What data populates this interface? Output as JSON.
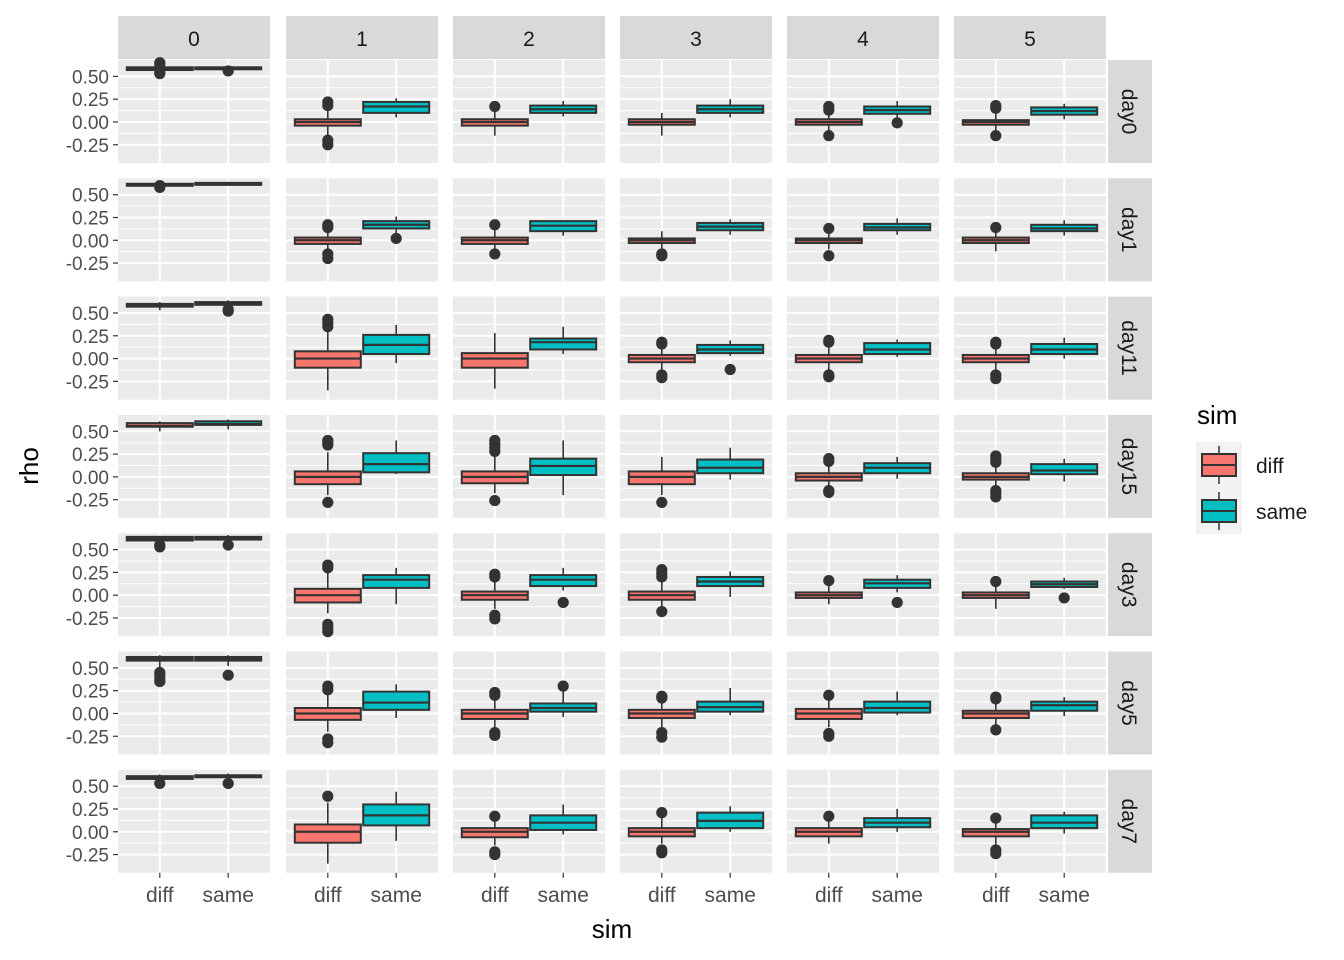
{
  "chart_data": {
    "type": "boxplot",
    "facet_columns": [
      "0",
      "1",
      "2",
      "3",
      "4",
      "5"
    ],
    "facet_rows": [
      "day0",
      "day1",
      "day11",
      "day15",
      "day3",
      "day5",
      "day7"
    ],
    "categories": [
      "diff",
      "same"
    ],
    "xlabel": "sim",
    "ylabel": "rho",
    "y_ticks": [
      -0.25,
      0.0,
      0.25,
      0.5
    ],
    "y_tick_labels": [
      "-0.25",
      "0.00",
      "0.25",
      "0.50"
    ],
    "ylim": [
      -0.45,
      0.68
    ],
    "legend": {
      "title": "sim",
      "position": "right",
      "entries": [
        {
          "label": "diff",
          "color": "#F8766D"
        },
        {
          "label": "same",
          "color": "#00BFC4"
        }
      ]
    },
    "colors": {
      "diff": "#F8766D",
      "same": "#00BFC4",
      "panel": "#EBEBEB",
      "strip": "#D9D9D9",
      "box_line": "#333333"
    },
    "boxes": {
      "day0": [
        {
          "diff": {
            "lo": 0.52,
            "q1": 0.57,
            "med": 0.58,
            "q3": 0.6,
            "hi": 0.63,
            "out": [
              0.53,
              0.55,
              0.63,
              0.65
            ]
          },
          "same": {
            "lo": 0.56,
            "q1": 0.58,
            "med": 0.59,
            "q3": 0.6,
            "hi": 0.61,
            "out": [
              0.56
            ]
          }
        },
        {
          "diff": {
            "lo": -0.15,
            "q1": -0.04,
            "med": 0.0,
            "q3": 0.03,
            "hi": 0.15,
            "out": [
              0.18,
              0.22,
              -0.2,
              -0.25
            ]
          },
          "same": {
            "lo": 0.05,
            "q1": 0.1,
            "med": 0.17,
            "q3": 0.22,
            "hi": 0.26,
            "out": []
          }
        },
        {
          "diff": {
            "lo": -0.15,
            "q1": -0.04,
            "med": 0.0,
            "q3": 0.03,
            "hi": 0.13,
            "out": [
              0.17
            ]
          },
          "same": {
            "lo": 0.06,
            "q1": 0.1,
            "med": 0.14,
            "q3": 0.18,
            "hi": 0.23,
            "out": []
          }
        },
        {
          "diff": {
            "lo": -0.15,
            "q1": -0.03,
            "med": 0.0,
            "q3": 0.03,
            "hi": 0.1,
            "out": []
          },
          "same": {
            "lo": 0.05,
            "q1": 0.1,
            "med": 0.14,
            "q3": 0.18,
            "hi": 0.25,
            "out": []
          }
        },
        {
          "diff": {
            "lo": -0.13,
            "q1": -0.03,
            "med": 0.0,
            "q3": 0.03,
            "hi": 0.12,
            "out": [
              0.17,
              0.13,
              -0.15
            ]
          },
          "same": {
            "lo": 0.04,
            "q1": 0.09,
            "med": 0.13,
            "q3": 0.17,
            "hi": 0.23,
            "out": [
              -0.01
            ]
          }
        },
        {
          "diff": {
            "lo": -0.12,
            "q1": -0.03,
            "med": 0.0,
            "q3": 0.02,
            "hi": 0.13,
            "out": [
              0.18,
              0.15,
              -0.15
            ]
          },
          "same": {
            "lo": 0.03,
            "q1": 0.08,
            "med": 0.12,
            "q3": 0.16,
            "hi": 0.2,
            "out": []
          }
        }
      ],
      "day1": [
        {
          "diff": {
            "lo": 0.59,
            "q1": 0.6,
            "med": 0.61,
            "q3": 0.62,
            "hi": 0.63,
            "out": [
              0.58,
              0.6
            ]
          },
          "same": {
            "lo": 0.61,
            "q1": 0.62,
            "med": 0.62,
            "q3": 0.63,
            "hi": 0.64,
            "out": []
          }
        },
        {
          "diff": {
            "lo": -0.15,
            "q1": -0.04,
            "med": 0.0,
            "q3": 0.03,
            "hi": 0.12,
            "out": [
              0.17,
              0.14,
              -0.15,
              -0.2
            ]
          },
          "same": {
            "lo": 0.07,
            "q1": 0.13,
            "med": 0.17,
            "q3": 0.21,
            "hi": 0.26,
            "out": [
              0.02
            ]
          }
        },
        {
          "diff": {
            "lo": -0.12,
            "q1": -0.04,
            "med": 0.0,
            "q3": 0.03,
            "hi": 0.12,
            "out": [
              0.17,
              -0.15
            ]
          },
          "same": {
            "lo": 0.05,
            "q1": 0.1,
            "med": 0.16,
            "q3": 0.21,
            "hi": 0.22,
            "out": []
          }
        },
        {
          "diff": {
            "lo": -0.1,
            "q1": -0.03,
            "med": 0.0,
            "q3": 0.02,
            "hi": 0.1,
            "out": [
              -0.15,
              -0.17
            ]
          },
          "same": {
            "lo": 0.06,
            "q1": 0.11,
            "med": 0.15,
            "q3": 0.19,
            "hi": 0.23,
            "out": []
          }
        },
        {
          "diff": {
            "lo": -0.1,
            "q1": -0.03,
            "med": 0.0,
            "q3": 0.02,
            "hi": 0.1,
            "out": [
              0.13,
              -0.17
            ]
          },
          "same": {
            "lo": 0.06,
            "q1": 0.11,
            "med": 0.14,
            "q3": 0.18,
            "hi": 0.24,
            "out": []
          }
        },
        {
          "diff": {
            "lo": -0.12,
            "q1": -0.03,
            "med": 0.0,
            "q3": 0.03,
            "hi": 0.1,
            "out": [
              0.14
            ]
          },
          "same": {
            "lo": 0.05,
            "q1": 0.1,
            "med": 0.13,
            "q3": 0.17,
            "hi": 0.22,
            "out": []
          }
        }
      ],
      "day11": [
        {
          "diff": {
            "lo": 0.53,
            "q1": 0.57,
            "med": 0.58,
            "q3": 0.6,
            "hi": 0.62,
            "out": []
          },
          "same": {
            "lo": 0.56,
            "q1": 0.59,
            "med": 0.6,
            "q3": 0.62,
            "hi": 0.64,
            "out": [
              0.54,
              0.52
            ]
          }
        },
        {
          "diff": {
            "lo": -0.35,
            "q1": -0.1,
            "med": 0.0,
            "q3": 0.08,
            "hi": 0.3,
            "out": [
              0.35,
              0.39,
              0.43
            ]
          },
          "same": {
            "lo": -0.05,
            "q1": 0.05,
            "med": 0.15,
            "q3": 0.26,
            "hi": 0.37,
            "out": []
          }
        },
        {
          "diff": {
            "lo": -0.33,
            "q1": -0.1,
            "med": 0.0,
            "q3": 0.06,
            "hi": 0.28,
            "out": []
          },
          "same": {
            "lo": 0.05,
            "q1": 0.1,
            "med": 0.18,
            "q3": 0.22,
            "hi": 0.35,
            "out": []
          }
        },
        {
          "diff": {
            "lo": -0.13,
            "q1": -0.04,
            "med": 0.0,
            "q3": 0.04,
            "hi": 0.14,
            "out": [
              0.18,
              0.16,
              -0.18,
              -0.21
            ]
          },
          "same": {
            "lo": 0.03,
            "q1": 0.06,
            "med": 0.1,
            "q3": 0.15,
            "hi": 0.2,
            "out": [
              -0.12
            ]
          }
        },
        {
          "diff": {
            "lo": -0.13,
            "q1": -0.04,
            "med": 0.0,
            "q3": 0.04,
            "hi": 0.15,
            "out": [
              0.2,
              0.18,
              -0.18,
              -0.2
            ]
          },
          "same": {
            "lo": 0.02,
            "q1": 0.05,
            "med": 0.1,
            "q3": 0.17,
            "hi": 0.21,
            "out": []
          }
        },
        {
          "diff": {
            "lo": -0.14,
            "q1": -0.04,
            "med": 0.0,
            "q3": 0.04,
            "hi": 0.14,
            "out": [
              0.18,
              0.16,
              -0.18,
              -0.22
            ]
          },
          "same": {
            "lo": 0.0,
            "q1": 0.05,
            "med": 0.1,
            "q3": 0.16,
            "hi": 0.23,
            "out": []
          }
        }
      ],
      "day15": [
        {
          "diff": {
            "lo": 0.5,
            "q1": 0.55,
            "med": 0.56,
            "q3": 0.59,
            "hi": 0.61,
            "out": []
          },
          "same": {
            "lo": 0.52,
            "q1": 0.57,
            "med": 0.58,
            "q3": 0.61,
            "hi": 0.63,
            "out": []
          }
        },
        {
          "diff": {
            "lo": -0.2,
            "q1": -0.08,
            "med": 0.0,
            "q3": 0.06,
            "hi": 0.27,
            "out": [
              0.35,
              0.38,
              0.4,
              -0.28
            ]
          },
          "same": {
            "lo": 0.03,
            "q1": 0.05,
            "med": 0.14,
            "q3": 0.26,
            "hi": 0.4,
            "out": []
          }
        },
        {
          "diff": {
            "lo": -0.18,
            "q1": -0.07,
            "med": 0.0,
            "q3": 0.06,
            "hi": 0.22,
            "out": [
              0.28,
              0.32,
              0.36,
              0.4,
              -0.26
            ]
          },
          "same": {
            "lo": -0.2,
            "q1": 0.02,
            "med": 0.12,
            "q3": 0.2,
            "hi": 0.4,
            "out": []
          }
        },
        {
          "diff": {
            "lo": -0.2,
            "q1": -0.08,
            "med": 0.0,
            "q3": 0.06,
            "hi": 0.22,
            "out": [
              -0.28
            ]
          },
          "same": {
            "lo": -0.03,
            "q1": 0.04,
            "med": 0.1,
            "q3": 0.19,
            "hi": 0.32,
            "out": []
          }
        },
        {
          "diff": {
            "lo": -0.13,
            "q1": -0.04,
            "med": 0.0,
            "q3": 0.04,
            "hi": 0.12,
            "out": [
              0.17,
              0.2,
              -0.15,
              -0.17
            ]
          },
          "same": {
            "lo": -0.02,
            "q1": 0.04,
            "med": 0.1,
            "q3": 0.15,
            "hi": 0.22,
            "out": []
          }
        },
        {
          "diff": {
            "lo": -0.12,
            "q1": -0.03,
            "med": 0.0,
            "q3": 0.04,
            "hi": 0.12,
            "out": [
              0.16,
              0.2,
              0.23,
              -0.15,
              -0.18,
              -0.22
            ]
          },
          "same": {
            "lo": -0.05,
            "q1": 0.03,
            "med": 0.07,
            "q3": 0.14,
            "hi": 0.2,
            "out": []
          }
        }
      ],
      "day3": [
        {
          "diff": {
            "lo": 0.55,
            "q1": 0.6,
            "med": 0.62,
            "q3": 0.64,
            "hi": 0.65,
            "out": [
              0.53,
              0.55
            ]
          },
          "same": {
            "lo": 0.58,
            "q1": 0.61,
            "med": 0.63,
            "q3": 0.64,
            "hi": 0.66,
            "out": [
              0.55
            ]
          }
        },
        {
          "diff": {
            "lo": -0.2,
            "q1": -0.08,
            "med": 0.0,
            "q3": 0.07,
            "hi": 0.25,
            "out": [
              0.3,
              0.33,
              -0.32,
              -0.36,
              -0.4
            ]
          },
          "same": {
            "lo": -0.1,
            "q1": 0.08,
            "med": 0.17,
            "q3": 0.22,
            "hi": 0.3,
            "out": []
          }
        },
        {
          "diff": {
            "lo": -0.15,
            "q1": -0.05,
            "med": 0.0,
            "q3": 0.04,
            "hi": 0.18,
            "out": [
              0.23,
              0.2,
              -0.22,
              -0.26
            ]
          },
          "same": {
            "lo": 0.05,
            "q1": 0.1,
            "med": 0.17,
            "q3": 0.22,
            "hi": 0.3,
            "out": [
              -0.08
            ]
          }
        },
        {
          "diff": {
            "lo": -0.12,
            "q1": -0.05,
            "med": 0.0,
            "q3": 0.04,
            "hi": 0.16,
            "out": [
              0.2,
              0.24,
              0.28,
              -0.18
            ]
          },
          "same": {
            "lo": -0.02,
            "q1": 0.1,
            "med": 0.15,
            "q3": 0.2,
            "hi": 0.26,
            "out": []
          }
        },
        {
          "diff": {
            "lo": -0.1,
            "q1": -0.03,
            "med": 0.0,
            "q3": 0.03,
            "hi": 0.12,
            "out": [
              0.16
            ]
          },
          "same": {
            "lo": 0.03,
            "q1": 0.08,
            "med": 0.13,
            "q3": 0.17,
            "hi": 0.22,
            "out": [
              -0.08
            ]
          }
        },
        {
          "diff": {
            "lo": -0.15,
            "q1": -0.03,
            "med": 0.0,
            "q3": 0.03,
            "hi": 0.12,
            "out": [
              0.15
            ]
          },
          "same": {
            "lo": 0.07,
            "q1": 0.09,
            "med": 0.12,
            "q3": 0.15,
            "hi": 0.19,
            "out": [
              -0.03
            ]
          }
        }
      ],
      "day5": [
        {
          "diff": {
            "lo": 0.5,
            "q1": 0.58,
            "med": 0.6,
            "q3": 0.62,
            "hi": 0.64,
            "out": [
              0.35,
              0.38,
              0.42,
              0.45
            ]
          },
          "same": {
            "lo": 0.52,
            "q1": 0.58,
            "med": 0.6,
            "q3": 0.62,
            "hi": 0.64,
            "out": [
              0.42
            ]
          }
        },
        {
          "diff": {
            "lo": -0.2,
            "q1": -0.07,
            "med": 0.0,
            "q3": 0.06,
            "hi": 0.22,
            "out": [
              0.26,
              0.3,
              -0.28,
              -0.32
            ]
          },
          "same": {
            "lo": -0.05,
            "q1": 0.04,
            "med": 0.12,
            "q3": 0.24,
            "hi": 0.32,
            "out": []
          }
        },
        {
          "diff": {
            "lo": -0.16,
            "q1": -0.06,
            "med": 0.0,
            "q3": 0.04,
            "hi": 0.18,
            "out": [
              0.23,
              0.2,
              -0.21,
              -0.24
            ]
          },
          "same": {
            "lo": -0.04,
            "q1": 0.02,
            "med": 0.06,
            "q3": 0.11,
            "hi": 0.25,
            "out": [
              0.3
            ]
          }
        },
        {
          "diff": {
            "lo": -0.17,
            "q1": -0.05,
            "med": 0.0,
            "q3": 0.04,
            "hi": 0.15,
            "out": [
              0.19,
              0.17,
              -0.21,
              -0.26
            ]
          },
          "same": {
            "lo": -0.02,
            "q1": 0.02,
            "med": 0.07,
            "q3": 0.13,
            "hi": 0.28,
            "out": []
          }
        },
        {
          "diff": {
            "lo": -0.15,
            "q1": -0.06,
            "med": 0.0,
            "q3": 0.05,
            "hi": 0.16,
            "out": [
              0.2,
              -0.22,
              -0.25
            ]
          },
          "same": {
            "lo": -0.02,
            "q1": 0.01,
            "med": 0.06,
            "q3": 0.13,
            "hi": 0.24,
            "out": []
          }
        },
        {
          "diff": {
            "lo": -0.15,
            "q1": -0.05,
            "med": 0.0,
            "q3": 0.03,
            "hi": 0.13,
            "out": [
              0.18,
              0.16,
              -0.18
            ]
          },
          "same": {
            "lo": -0.03,
            "q1": 0.03,
            "med": 0.09,
            "q3": 0.13,
            "hi": 0.18,
            "out": []
          }
        }
      ],
      "day7": [
        {
          "diff": {
            "lo": 0.54,
            "q1": 0.58,
            "med": 0.59,
            "q3": 0.61,
            "hi": 0.63,
            "out": [
              0.53
            ]
          },
          "same": {
            "lo": 0.56,
            "q1": 0.6,
            "med": 0.61,
            "q3": 0.62,
            "hi": 0.64,
            "out": [
              0.53
            ]
          }
        },
        {
          "diff": {
            "lo": -0.35,
            "q1": -0.12,
            "med": 0.0,
            "q3": 0.08,
            "hi": 0.32,
            "out": [
              0.39
            ]
          },
          "same": {
            "lo": -0.1,
            "q1": 0.07,
            "med": 0.18,
            "q3": 0.3,
            "hi": 0.44,
            "out": []
          }
        },
        {
          "diff": {
            "lo": -0.15,
            "q1": -0.06,
            "med": 0.0,
            "q3": 0.04,
            "hi": 0.13,
            "out": [
              0.17,
              -0.22,
              -0.25
            ]
          },
          "same": {
            "lo": -0.03,
            "q1": 0.02,
            "med": 0.1,
            "q3": 0.18,
            "hi": 0.3,
            "out": []
          }
        },
        {
          "diff": {
            "lo": -0.13,
            "q1": -0.05,
            "med": 0.0,
            "q3": 0.04,
            "hi": 0.16,
            "out": [
              0.21,
              -0.2,
              -0.23
            ]
          },
          "same": {
            "lo": 0.0,
            "q1": 0.04,
            "med": 0.12,
            "q3": 0.21,
            "hi": 0.28,
            "out": []
          }
        },
        {
          "diff": {
            "lo": -0.13,
            "q1": -0.05,
            "med": 0.0,
            "q3": 0.04,
            "hi": 0.12,
            "out": [
              0.17
            ]
          },
          "same": {
            "lo": 0.0,
            "q1": 0.05,
            "med": 0.1,
            "q3": 0.15,
            "hi": 0.25,
            "out": []
          }
        },
        {
          "diff": {
            "lo": -0.14,
            "q1": -0.05,
            "med": 0.0,
            "q3": 0.03,
            "hi": 0.12,
            "out": [
              0.15,
              -0.2,
              -0.24
            ]
          },
          "same": {
            "lo": -0.02,
            "q1": 0.04,
            "med": 0.1,
            "q3": 0.18,
            "hi": 0.22,
            "out": []
          }
        }
      ]
    }
  }
}
